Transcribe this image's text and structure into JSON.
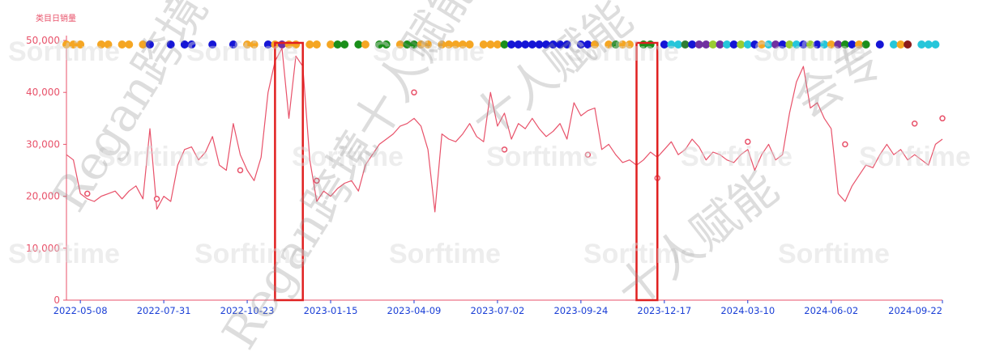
{
  "chart_data": {
    "type": "line",
    "ylabel": "类目日销量",
    "ylim": [
      0,
      50000
    ],
    "y_ticks": [
      "0",
      "10,000",
      "20,000",
      "30,000",
      "40,000",
      "50,000"
    ],
    "x_tick_labels": [
      "2022-05-08",
      "2022-07-31",
      "2022-10-23",
      "2023-01-15",
      "2023-04-09",
      "2023-07-02",
      "2023-09-24",
      "2023-12-17",
      "2024-03-10",
      "2024-06-02",
      "2024-09-22"
    ],
    "x_range": [
      "2022-04-24",
      "2024-09-22"
    ],
    "grid": false,
    "line_color": "#e8526a",
    "series": [
      {
        "x": [
          "2022-04-24",
          "2022-05-01",
          "2022-05-08",
          "2022-05-15",
          "2022-05-22",
          "2022-05-29",
          "2022-06-05",
          "2022-06-12",
          "2022-06-19",
          "2022-06-26",
          "2022-07-03",
          "2022-07-10",
          "2022-07-17",
          "2022-07-24",
          "2022-07-31",
          "2022-08-07",
          "2022-08-14",
          "2022-08-21",
          "2022-08-28",
          "2022-09-04",
          "2022-09-11",
          "2022-09-18",
          "2022-09-25",
          "2022-10-02",
          "2022-10-09",
          "2022-10-16",
          "2022-10-23",
          "2022-10-30",
          "2022-11-06",
          "2022-11-13",
          "2022-11-20",
          "2022-11-27",
          "2022-12-04",
          "2022-12-11",
          "2022-12-18",
          "2022-12-25",
          "2023-01-01",
          "2023-01-08",
          "2023-01-15",
          "2023-01-22",
          "2023-01-29",
          "2023-02-05",
          "2023-02-12",
          "2023-02-19",
          "2023-02-26",
          "2023-03-05",
          "2023-03-12",
          "2023-03-19",
          "2023-03-26",
          "2023-04-02",
          "2023-04-09",
          "2023-04-16",
          "2023-04-23",
          "2023-04-30",
          "2023-05-07",
          "2023-05-14",
          "2023-05-21",
          "2023-05-28",
          "2023-06-04",
          "2023-06-11",
          "2023-06-18",
          "2023-06-25",
          "2023-07-02",
          "2023-07-09",
          "2023-07-16",
          "2023-07-23",
          "2023-07-30",
          "2023-08-06",
          "2023-08-13",
          "2023-08-20",
          "2023-08-27",
          "2023-09-03",
          "2023-09-10",
          "2023-09-17",
          "2023-09-24",
          "2023-10-01",
          "2023-10-08",
          "2023-10-15",
          "2023-10-22",
          "2023-10-29",
          "2023-11-05",
          "2023-11-12",
          "2023-11-19",
          "2023-11-26",
          "2023-12-03",
          "2023-12-10",
          "2023-12-17",
          "2023-12-24",
          "2023-12-31",
          "2024-01-07",
          "2024-01-14",
          "2024-01-21",
          "2024-01-28",
          "2024-02-04",
          "2024-02-11",
          "2024-02-18",
          "2024-02-25",
          "2024-03-03",
          "2024-03-10",
          "2024-03-17",
          "2024-03-24",
          "2024-03-31",
          "2024-04-07",
          "2024-04-14",
          "2024-04-21",
          "2024-04-28",
          "2024-05-05",
          "2024-05-12",
          "2024-05-19",
          "2024-05-26",
          "2024-06-02",
          "2024-06-09",
          "2024-06-16",
          "2024-06-23",
          "2024-06-30",
          "2024-07-07",
          "2024-07-14",
          "2024-07-21",
          "2024-07-28",
          "2024-08-04",
          "2024-08-11",
          "2024-08-18",
          "2024-08-25",
          "2024-09-01",
          "2024-09-08",
          "2024-09-15",
          "2024-09-22"
        ],
        "y": [
          28000,
          27000,
          20500,
          19500,
          19000,
          20000,
          20500,
          21000,
          19500,
          21000,
          22000,
          19500,
          33000,
          17500,
          20000,
          19000,
          26000,
          29000,
          29500,
          27000,
          28500,
          31500,
          26000,
          25000,
          34000,
          28000,
          25000,
          23000,
          27500,
          40000,
          46000,
          48500,
          35000,
          47000,
          45000,
          27000,
          19000,
          21000,
          20000,
          21500,
          22500,
          23000,
          21000,
          26000,
          28000,
          30000,
          31000,
          32000,
          33500,
          34000,
          35000,
          33500,
          29000,
          17000,
          32000,
          31000,
          30500,
          32000,
          34000,
          31500,
          30500,
          40000,
          33500,
          36000,
          31000,
          34000,
          33000,
          35000,
          33000,
          31500,
          32500,
          34000,
          31000,
          38000,
          35500,
          36500,
          37000,
          29000,
          30000,
          28000,
          26500,
          27000,
          26000,
          27000,
          28500,
          27500,
          29000,
          30500,
          28000,
          29000,
          31000,
          29500,
          27000,
          28500,
          28000,
          27000,
          26500,
          28000,
          29000,
          25000,
          28000,
          30000,
          27000,
          28000,
          36000,
          42000,
          45000,
          37000,
          38000,
          35000,
          33000,
          20500,
          19000,
          22000,
          24000,
          26000,
          25500,
          28000,
          30000,
          28000,
          29000,
          27000,
          28000,
          27000,
          26000,
          30000,
          31000
        ],
        "markers": [
          {
            "x": "2022-05-15",
            "y": 20500
          },
          {
            "x": "2022-07-24",
            "y": 19500
          },
          {
            "x": "2022-10-16",
            "y": 25000
          },
          {
            "x": "2023-01-01",
            "y": 23000
          },
          {
            "x": "2023-04-09",
            "y": 40000
          },
          {
            "x": "2023-07-09",
            "y": 29000
          },
          {
            "x": "2023-10-01",
            "y": 28000
          },
          {
            "x": "2023-12-10",
            "y": 23500
          },
          {
            "x": "2024-03-10",
            "y": 30500
          },
          {
            "x": "2024-06-16",
            "y": 30000
          },
          {
            "x": "2024-08-25",
            "y": 34000
          },
          {
            "x": "2024-09-22",
            "y": 35000
          }
        ]
      }
    ],
    "event_dots": [
      {
        "x": "2022-04-24",
        "color": "#f5a623"
      },
      {
        "x": "2022-05-01",
        "color": "#f5a623"
      },
      {
        "x": "2022-05-08",
        "color": "#f5a623"
      },
      {
        "x": "2022-05-29",
        "color": "#f5a623"
      },
      {
        "x": "2022-06-05",
        "color": "#f5a623"
      },
      {
        "x": "2022-06-19",
        "color": "#f5a623"
      },
      {
        "x": "2022-06-26",
        "color": "#f5a623"
      },
      {
        "x": "2022-07-10",
        "color": "#f5a623"
      },
      {
        "x": "2022-07-17",
        "color": "#1515d6"
      },
      {
        "x": "2022-08-07",
        "color": "#1515d6"
      },
      {
        "x": "2022-08-21",
        "color": "#1515d6"
      },
      {
        "x": "2022-08-28",
        "color": "#1515d6"
      },
      {
        "x": "2022-09-18",
        "color": "#1515d6"
      },
      {
        "x": "2022-10-09",
        "color": "#1515d6"
      },
      {
        "x": "2022-10-23",
        "color": "#f5a623"
      },
      {
        "x": "2022-10-30",
        "color": "#f5a623"
      },
      {
        "x": "2022-11-13",
        "color": "#1515d6"
      },
      {
        "x": "2022-11-20",
        "color": "#f5a623"
      },
      {
        "x": "2022-11-27",
        "color": "#7030a0"
      },
      {
        "x": "2022-12-04",
        "color": "#f5a623"
      },
      {
        "x": "2022-12-11",
        "color": "#f5a623"
      },
      {
        "x": "2022-12-25",
        "color": "#f5a623"
      },
      {
        "x": "2023-01-01",
        "color": "#f5a623"
      },
      {
        "x": "2023-01-15",
        "color": "#f5a623"
      },
      {
        "x": "2023-01-22",
        "color": "#1a8f1a"
      },
      {
        "x": "2023-01-29",
        "color": "#1a8f1a"
      },
      {
        "x": "2023-02-12",
        "color": "#1a8f1a"
      },
      {
        "x": "2023-02-19",
        "color": "#f5a623"
      },
      {
        "x": "2023-03-05",
        "color": "#1a8f1a"
      },
      {
        "x": "2023-03-12",
        "color": "#1a8f1a"
      },
      {
        "x": "2023-03-26",
        "color": "#f5a623"
      },
      {
        "x": "2023-04-02",
        "color": "#1a8f1a"
      },
      {
        "x": "2023-04-09",
        "color": "#1a8f1a"
      },
      {
        "x": "2023-04-16",
        "color": "#f5a623"
      },
      {
        "x": "2023-04-23",
        "color": "#f5a623"
      },
      {
        "x": "2023-05-07",
        "color": "#f5a623"
      },
      {
        "x": "2023-05-14",
        "color": "#f5a623"
      },
      {
        "x": "2023-05-21",
        "color": "#f5a623"
      },
      {
        "x": "2023-05-28",
        "color": "#f5a623"
      },
      {
        "x": "2023-06-04",
        "color": "#f5a623"
      },
      {
        "x": "2023-06-18",
        "color": "#f5a623"
      },
      {
        "x": "2023-06-25",
        "color": "#f5a623"
      },
      {
        "x": "2023-07-02",
        "color": "#f5a623"
      },
      {
        "x": "2023-07-09",
        "color": "#1a8f1a"
      },
      {
        "x": "2023-07-16",
        "color": "#1515d6"
      },
      {
        "x": "2023-07-23",
        "color": "#1515d6"
      },
      {
        "x": "2023-07-30",
        "color": "#1515d6"
      },
      {
        "x": "2023-08-06",
        "color": "#1515d6"
      },
      {
        "x": "2023-08-13",
        "color": "#1515d6"
      },
      {
        "x": "2023-08-20",
        "color": "#1515d6"
      },
      {
        "x": "2023-08-27",
        "color": "#1515d6"
      },
      {
        "x": "2023-09-03",
        "color": "#1515d6"
      },
      {
        "x": "2023-09-10",
        "color": "#1515d6"
      },
      {
        "x": "2023-09-24",
        "color": "#1515d6"
      },
      {
        "x": "2023-10-01",
        "color": "#1515d6"
      },
      {
        "x": "2023-10-08",
        "color": "#f5a623"
      },
      {
        "x": "2023-10-22",
        "color": "#f5a623"
      },
      {
        "x": "2023-10-29",
        "color": "#1a8f1a"
      },
      {
        "x": "2023-11-05",
        "color": "#f5a623"
      },
      {
        "x": "2023-11-12",
        "color": "#f5a623"
      },
      {
        "x": "2023-11-26",
        "color": "#1a8f1a"
      },
      {
        "x": "2023-12-03",
        "color": "#1a8f1a"
      },
      {
        "x": "2023-12-17",
        "color": "#1515d6"
      },
      {
        "x": "2023-12-24",
        "color": "#26c6da"
      },
      {
        "x": "2023-12-31",
        "color": "#26c6da"
      },
      {
        "x": "2024-01-07",
        "color": "#2e7d32"
      },
      {
        "x": "2024-01-14",
        "color": "#1515d6"
      },
      {
        "x": "2024-01-21",
        "color": "#7030a0"
      },
      {
        "x": "2024-01-28",
        "color": "#7030a0"
      },
      {
        "x": "2024-02-04",
        "color": "#9acd32"
      },
      {
        "x": "2024-02-11",
        "color": "#7030a0"
      },
      {
        "x": "2024-02-18",
        "color": "#26c6da"
      },
      {
        "x": "2024-02-25",
        "color": "#1515d6"
      },
      {
        "x": "2024-03-03",
        "color": "#9acd32"
      },
      {
        "x": "2024-03-10",
        "color": "#26c6da"
      },
      {
        "x": "2024-03-17",
        "color": "#1515d6"
      },
      {
        "x": "2024-03-24",
        "color": "#f5a623"
      },
      {
        "x": "2024-03-31",
        "color": "#26c6da"
      },
      {
        "x": "2024-04-07",
        "color": "#7030a0"
      },
      {
        "x": "2024-04-14",
        "color": "#1515d6"
      },
      {
        "x": "2024-04-21",
        "color": "#9acd32"
      },
      {
        "x": "2024-04-28",
        "color": "#26c6da"
      },
      {
        "x": "2024-05-05",
        "color": "#1515d6"
      },
      {
        "x": "2024-05-12",
        "color": "#9acd32"
      },
      {
        "x": "2024-05-19",
        "color": "#1515d6"
      },
      {
        "x": "2024-05-26",
        "color": "#26c6da"
      },
      {
        "x": "2024-06-02",
        "color": "#f5a623"
      },
      {
        "x": "2024-06-09",
        "color": "#7030a0"
      },
      {
        "x": "2024-06-16",
        "color": "#1a8f1a"
      },
      {
        "x": "2024-06-23",
        "color": "#1515d6"
      },
      {
        "x": "2024-06-30",
        "color": "#f5a623"
      },
      {
        "x": "2024-07-07",
        "color": "#1a8f1a"
      },
      {
        "x": "2024-07-21",
        "color": "#1515d6"
      },
      {
        "x": "2024-08-04",
        "color": "#26c6da"
      },
      {
        "x": "2024-08-11",
        "color": "#f5a623"
      },
      {
        "x": "2024-08-18",
        "color": "#8b1a1a"
      },
      {
        "x": "2024-09-01",
        "color": "#26c6da"
      },
      {
        "x": "2024-09-08",
        "color": "#26c6da"
      },
      {
        "x": "2024-09-15",
        "color": "#26c6da"
      }
    ],
    "highlight_ranges": [
      {
        "from": "2022-11-20",
        "to": "2022-12-18",
        "color": "#e02020"
      },
      {
        "from": "2023-11-19",
        "to": "2023-12-10",
        "color": "#e02020"
      }
    ],
    "watermark": {
      "repeat": "Sorftime"
    }
  }
}
